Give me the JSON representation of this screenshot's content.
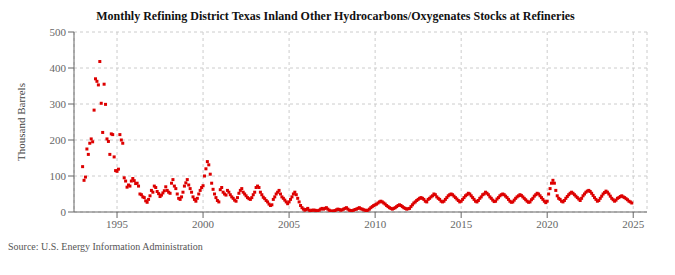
{
  "chart_data": {
    "type": "scatter",
    "title": "Monthly Refining District Texas Inland Other Hydrocarbons/Oxygenates Stocks at Refineries",
    "ylabel": "Thousand Barrels",
    "annotation": "Source: U.S. Energy Information Administration",
    "color": "#dd0000",
    "marker": "square",
    "grid": true,
    "xlim": [
      1992.5,
      2025.8
    ],
    "xticks": [
      1995,
      2000,
      2005,
      2010,
      2015,
      2020,
      2025
    ],
    "ylim": [
      0,
      500
    ],
    "yticks": [
      0,
      100,
      200,
      300,
      400,
      500
    ],
    "x": [
      1993.0,
      1993.083,
      1993.167,
      1993.25,
      1993.333,
      1993.417,
      1993.5,
      1993.583,
      1993.667,
      1993.75,
      1993.833,
      1993.917,
      1994.0,
      1994.083,
      1994.167,
      1994.25,
      1994.333,
      1994.417,
      1994.5,
      1994.583,
      1994.667,
      1994.75,
      1994.833,
      1994.917,
      1995.0,
      1995.083,
      1995.167,
      1995.25,
      1995.333,
      1995.417,
      1995.5,
      1995.583,
      1995.667,
      1995.75,
      1995.833,
      1995.917,
      1996.0,
      1996.083,
      1996.167,
      1996.25,
      1996.333,
      1996.417,
      1996.5,
      1996.583,
      1996.667,
      1996.75,
      1996.833,
      1996.917,
      1997.0,
      1997.083,
      1997.167,
      1997.25,
      1997.333,
      1997.417,
      1997.5,
      1997.583,
      1997.667,
      1997.75,
      1997.833,
      1997.917,
      1998.0,
      1998.083,
      1998.167,
      1998.25,
      1998.333,
      1998.417,
      1998.5,
      1998.583,
      1998.667,
      1998.75,
      1998.833,
      1998.917,
      1999.0,
      1999.083,
      1999.167,
      1999.25,
      1999.333,
      1999.417,
      1999.5,
      1999.583,
      1999.667,
      1999.75,
      1999.833,
      1999.917,
      2000.0,
      2000.083,
      2000.167,
      2000.25,
      2000.333,
      2000.417,
      2000.5,
      2000.583,
      2000.667,
      2000.75,
      2000.833,
      2000.917,
      2001.0,
      2001.083,
      2001.167,
      2001.25,
      2001.333,
      2001.417,
      2001.5,
      2001.583,
      2001.667,
      2001.75,
      2001.833,
      2001.917,
      2002.0,
      2002.083,
      2002.167,
      2002.25,
      2002.333,
      2002.417,
      2002.5,
      2002.583,
      2002.667,
      2002.75,
      2002.833,
      2002.917,
      2003.0,
      2003.083,
      2003.167,
      2003.25,
      2003.333,
      2003.417,
      2003.5,
      2003.583,
      2003.667,
      2003.75,
      2003.833,
      2003.917,
      2004.0,
      2004.083,
      2004.167,
      2004.25,
      2004.333,
      2004.417,
      2004.5,
      2004.583,
      2004.667,
      2004.75,
      2004.833,
      2004.917,
      2005.0,
      2005.083,
      2005.167,
      2005.25,
      2005.333,
      2005.417,
      2005.5,
      2005.583,
      2005.667,
      2005.75,
      2005.833,
      2005.917,
      2006.0,
      2006.083,
      2006.167,
      2006.25,
      2006.333,
      2006.417,
      2006.5,
      2006.583,
      2006.667,
      2006.75,
      2006.833,
      2006.917,
      2007.0,
      2007.083,
      2007.167,
      2007.25,
      2007.333,
      2007.417,
      2007.5,
      2007.583,
      2007.667,
      2007.75,
      2007.833,
      2007.917,
      2008.0,
      2008.083,
      2008.167,
      2008.25,
      2008.333,
      2008.417,
      2008.5,
      2008.583,
      2008.667,
      2008.75,
      2008.833,
      2008.917,
      2009.0,
      2009.083,
      2009.167,
      2009.25,
      2009.333,
      2009.417,
      2009.5,
      2009.583,
      2009.667,
      2009.75,
      2009.833,
      2009.917,
      2010.0,
      2010.083,
      2010.167,
      2010.25,
      2010.333,
      2010.417,
      2010.5,
      2010.583,
      2010.667,
      2010.75,
      2010.833,
      2010.917,
      2011.0,
      2011.083,
      2011.167,
      2011.25,
      2011.333,
      2011.417,
      2011.5,
      2011.583,
      2011.667,
      2011.75,
      2011.833,
      2011.917,
      2012.0,
      2012.083,
      2012.167,
      2012.25,
      2012.333,
      2012.417,
      2012.5,
      2012.583,
      2012.667,
      2012.75,
      2012.833,
      2012.917,
      2013.0,
      2013.083,
      2013.167,
      2013.25,
      2013.333,
      2013.417,
      2013.5,
      2013.583,
      2013.667,
      2013.75,
      2013.833,
      2013.917,
      2014.0,
      2014.083,
      2014.167,
      2014.25,
      2014.333,
      2014.417,
      2014.5,
      2014.583,
      2014.667,
      2014.75,
      2014.833,
      2014.917,
      2015.0,
      2015.083,
      2015.167,
      2015.25,
      2015.333,
      2015.417,
      2015.5,
      2015.583,
      2015.667,
      2015.75,
      2015.833,
      2015.917,
      2016.0,
      2016.083,
      2016.167,
      2016.25,
      2016.333,
      2016.417,
      2016.5,
      2016.583,
      2016.667,
      2016.75,
      2016.833,
      2016.917,
      2017.0,
      2017.083,
      2017.167,
      2017.25,
      2017.333,
      2017.417,
      2017.5,
      2017.583,
      2017.667,
      2017.75,
      2017.833,
      2017.917,
      2018.0,
      2018.083,
      2018.167,
      2018.25,
      2018.333,
      2018.417,
      2018.5,
      2018.583,
      2018.667,
      2018.75,
      2018.833,
      2018.917,
      2019.0,
      2019.083,
      2019.167,
      2019.25,
      2019.333,
      2019.417,
      2019.5,
      2019.583,
      2019.667,
      2019.75,
      2019.833,
      2019.917,
      2020.0,
      2020.083,
      2020.167,
      2020.25,
      2020.333,
      2020.417,
      2020.5,
      2020.583,
      2020.667,
      2020.75,
      2020.833,
      2020.917,
      2021.0,
      2021.083,
      2021.167,
      2021.25,
      2021.333,
      2021.417,
      2021.5,
      2021.583,
      2021.667,
      2021.75,
      2021.833,
      2021.917,
      2022.0,
      2022.083,
      2022.167,
      2022.25,
      2022.333,
      2022.417,
      2022.5,
      2022.583,
      2022.667,
      2022.75,
      2022.833,
      2022.917,
      2023.0,
      2023.083,
      2023.167,
      2023.25,
      2023.333,
      2023.417,
      2023.5,
      2023.583,
      2023.667,
      2023.75,
      2023.833,
      2023.917,
      2024.0,
      2024.083,
      2024.167,
      2024.25,
      2024.333,
      2024.417,
      2024.5,
      2024.583,
      2024.667,
      2024.75,
      2024.833,
      2024.917
    ],
    "values": [
      126,
      88,
      97,
      175,
      160,
      191,
      203,
      195,
      283,
      370,
      363,
      353,
      418,
      302,
      221,
      355,
      299,
      203,
      196,
      160,
      217,
      215,
      153,
      115,
      113,
      119,
      215,
      200,
      191,
      95,
      86,
      69,
      75,
      72,
      86,
      93,
      87,
      79,
      80,
      72,
      50,
      48,
      42,
      40,
      31,
      27,
      35,
      45,
      60,
      55,
      72,
      68,
      57,
      51,
      43,
      47,
      53,
      59,
      70,
      60,
      55,
      52,
      80,
      90,
      72,
      65,
      50,
      38,
      35,
      42,
      55,
      72,
      81,
      90,
      75,
      65,
      55,
      42,
      35,
      30,
      38,
      50,
      60,
      68,
      73,
      100,
      120,
      140,
      131,
      105,
      80,
      63,
      50,
      40,
      32,
      28,
      62,
      68,
      55,
      50,
      47,
      60,
      55,
      48,
      42,
      38,
      33,
      30,
      40,
      52,
      60,
      65,
      55,
      50,
      45,
      40,
      37,
      35,
      40,
      48,
      55,
      68,
      72,
      68,
      55,
      48,
      41,
      37,
      32,
      28,
      22,
      18,
      20,
      35,
      42,
      50,
      55,
      60,
      50,
      42,
      38,
      33,
      28,
      23,
      28,
      35,
      42,
      50,
      55,
      48,
      38,
      28,
      18,
      12,
      8,
      5,
      7,
      10,
      5,
      3,
      5,
      5,
      5,
      4,
      3,
      5,
      8,
      10,
      8,
      10,
      12,
      8,
      5,
      3,
      2,
      3,
      4,
      6,
      8,
      7,
      5,
      6,
      8,
      10,
      12,
      8,
      5,
      4,
      3,
      5,
      7,
      8,
      10,
      12,
      9,
      8,
      6,
      5,
      4,
      5,
      8,
      12,
      15,
      18,
      20,
      22,
      25,
      28,
      30,
      28,
      25,
      22,
      18,
      15,
      12,
      10,
      8,
      10,
      12,
      15,
      18,
      20,
      18,
      15,
      12,
      10,
      8,
      9,
      10,
      15,
      20,
      25,
      28,
      32,
      35,
      38,
      40,
      38,
      35,
      30,
      28,
      35,
      38,
      42,
      45,
      50,
      48,
      42,
      38,
      35,
      30,
      28,
      30,
      35,
      40,
      45,
      48,
      50,
      48,
      44,
      40,
      36,
      32,
      28,
      30,
      35,
      40,
      45,
      48,
      52,
      50,
      45,
      40,
      35,
      30,
      28,
      32,
      38,
      42,
      48,
      50,
      55,
      52,
      48,
      42,
      38,
      33,
      29,
      30,
      36,
      40,
      45,
      48,
      50,
      48,
      44,
      40,
      35,
      30,
      27,
      28,
      33,
      38,
      42,
      45,
      48,
      46,
      42,
      38,
      34,
      30,
      27,
      28,
      34,
      38,
      44,
      48,
      52,
      50,
      45,
      40,
      35,
      30,
      26,
      30,
      50,
      65,
      80,
      88,
      80,
      60,
      45,
      38,
      35,
      30,
      28,
      32,
      38,
      43,
      48,
      52,
      55,
      52,
      48,
      44,
      40,
      36,
      32,
      38,
      45,
      50,
      55,
      58,
      60,
      57,
      52,
      46,
      40,
      35,
      30,
      32,
      38,
      44,
      50,
      54,
      58,
      55,
      50,
      44,
      38,
      34,
      30,
      33,
      38,
      40,
      43,
      45,
      42,
      40,
      37,
      34,
      30,
      28,
      25
    ]
  }
}
